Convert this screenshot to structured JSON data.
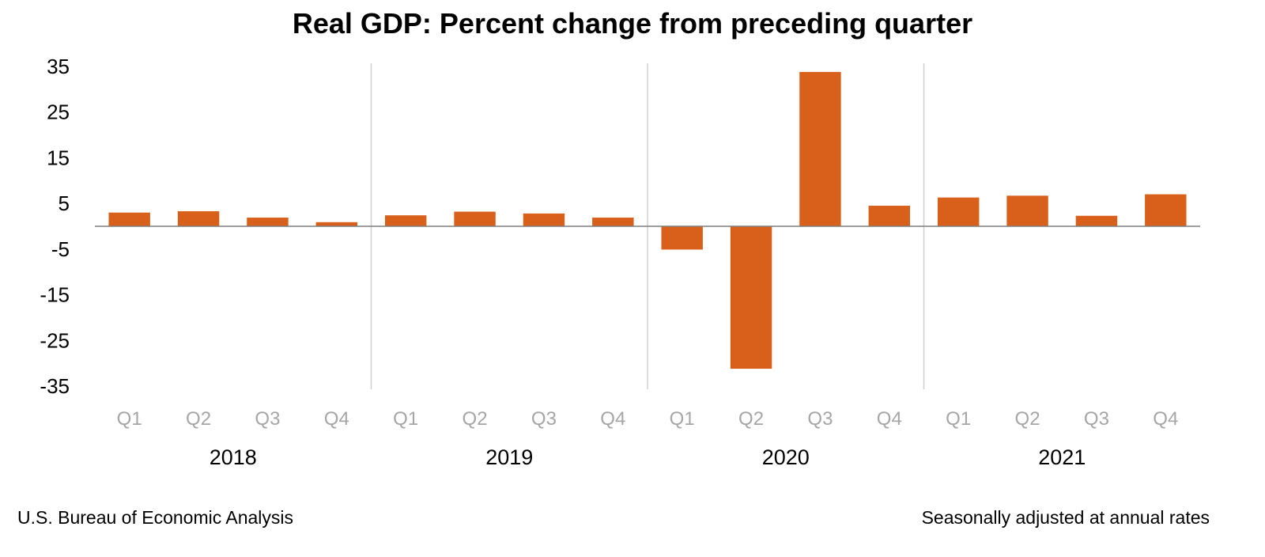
{
  "chart_data": {
    "type": "bar",
    "title": "Real GDP:  Percent change from preceding quarter",
    "categories": [
      "Q1",
      "Q2",
      "Q3",
      "Q4",
      "Q1",
      "Q2",
      "Q3",
      "Q4",
      "Q1",
      "Q2",
      "Q3",
      "Q4",
      "Q1",
      "Q2",
      "Q3",
      "Q4"
    ],
    "years": [
      "2018",
      "2019",
      "2020",
      "2021"
    ],
    "quarters_per_year": 4,
    "values": [
      3.0,
      3.3,
      1.9,
      0.9,
      2.4,
      3.2,
      2.8,
      1.9,
      -5.1,
      -31.2,
      33.8,
      4.5,
      6.3,
      6.7,
      2.3,
      7.0
    ],
    "yticks": [
      35,
      25,
      15,
      5,
      -5,
      -15,
      -25,
      -35
    ],
    "ylim": [
      -35,
      35
    ],
    "xlabel": "",
    "ylabel": "",
    "bar_color": "#D9601A",
    "axis_color": "#7f7f7f",
    "divider_color": "#d0d0d0",
    "quarter_label_color": "#a6a6a6",
    "grid": false
  },
  "footer": {
    "source": "U.S. Bureau of Economic Analysis",
    "note": "Seasonally adjusted at annual rates"
  }
}
